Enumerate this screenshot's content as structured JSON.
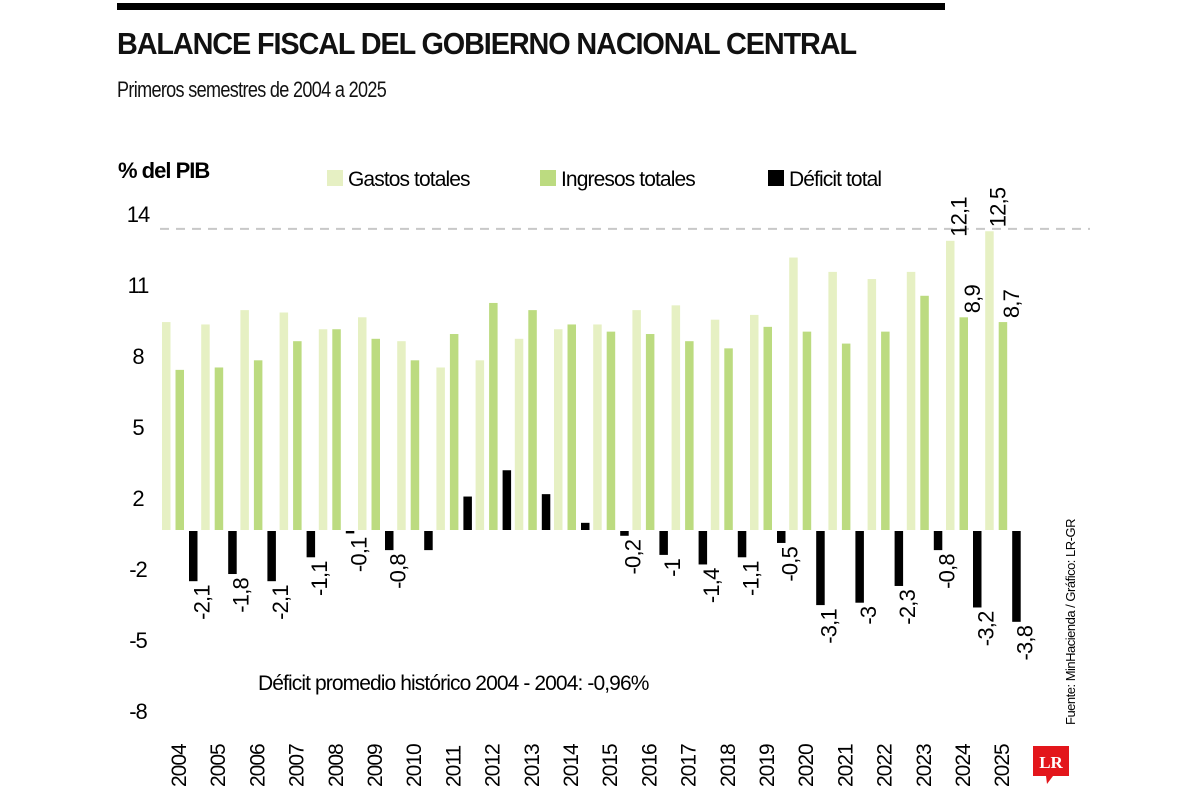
{
  "header": {
    "title": "BALANCE FISCAL DEL GOBIERNO NACIONAL CENTRAL",
    "subtitle": "Primeros semestres de 2004 a 2025"
  },
  "source": "Fuente: MinHacienda / Gráfico: LR-GR",
  "logo": {
    "text": "LR",
    "color": "#e3161b"
  },
  "annotation": "Déficit promedio histórico 2004 - 2004: -0,96%",
  "colors": {
    "gastos": "#e6f0c3",
    "ingresos": "#bcdb80",
    "deficit": "#000000",
    "reference_line": "#c8c8c8"
  },
  "chart_data": {
    "type": "bar",
    "title": "BALANCE FISCAL DEL GOBIERNO NACIONAL CENTRAL",
    "subtitle": "Primeros semestres de 2004 a 2025",
    "ylabel": "% del PIB",
    "xlabel": "",
    "y_tick_labels": [
      "14",
      "11",
      "8",
      "5",
      "2",
      "-2",
      "-5",
      "-8"
    ],
    "ylim": [
      -5,
      13
    ],
    "reference_line": 12.6,
    "grid": false,
    "legend_position": "top",
    "categories": [
      "2004",
      "2005",
      "2006",
      "2007",
      "2008",
      "2009",
      "2010",
      "2011",
      "2012",
      "2013",
      "2014",
      "2015",
      "2016",
      "2017",
      "2018",
      "2019",
      "2020",
      "2021",
      "2022",
      "2023",
      "2024",
      "2025"
    ],
    "series": [
      {
        "name": "Gastos totales",
        "key": "gastos",
        "values": [
          8.7,
          8.6,
          9.2,
          9.1,
          8.4,
          8.9,
          7.9,
          6.8,
          7.1,
          8.0,
          8.4,
          8.6,
          9.2,
          9.4,
          8.8,
          9.0,
          11.4,
          10.8,
          10.5,
          10.8,
          12.1,
          12.5
        ],
        "labels": [
          "",
          "",
          "",
          "",
          "",
          "",
          "",
          "",
          "",
          "",
          "",
          "",
          "",
          "",
          "",
          "",
          "",
          "",
          "",
          "",
          "12,1",
          "12,5"
        ]
      },
      {
        "name": "Ingresos totales",
        "key": "ingresos",
        "values": [
          6.7,
          6.8,
          7.1,
          7.9,
          8.4,
          8.0,
          7.1,
          8.2,
          9.5,
          9.2,
          8.6,
          8.3,
          8.2,
          7.9,
          7.6,
          8.5,
          8.3,
          7.8,
          8.3,
          9.8,
          8.9,
          8.7
        ],
        "labels": [
          "",
          "",
          "",
          "",
          "",
          "",
          "",
          "",
          "",
          "",
          "",
          "",
          "",
          "",
          "",
          "",
          "",
          "",
          "",
          "",
          "8,9",
          "8,7"
        ]
      },
      {
        "name": "Déficit total",
        "key": "deficit",
        "values": [
          -2.1,
          -1.8,
          -2.1,
          -1.1,
          -0.1,
          -0.8,
          -0.8,
          1.4,
          2.5,
          1.5,
          0.3,
          -0.2,
          -1,
          -1.4,
          -1.1,
          -0.5,
          -3.1,
          -3,
          -2.3,
          -0.8,
          -3.2,
          -3.8
        ],
        "labels": [
          "-2,1",
          "-1,8",
          "-2,1",
          "-1,1",
          "-0,1",
          "-0,8",
          "",
          "",
          "",
          "",
          "",
          "-0,2",
          "-1",
          "-1,4",
          "-1,1",
          "-0,5",
          "-3,1",
          "-3",
          "-2,3",
          "-0,8",
          "-3,2",
          "-3,8"
        ]
      }
    ]
  }
}
